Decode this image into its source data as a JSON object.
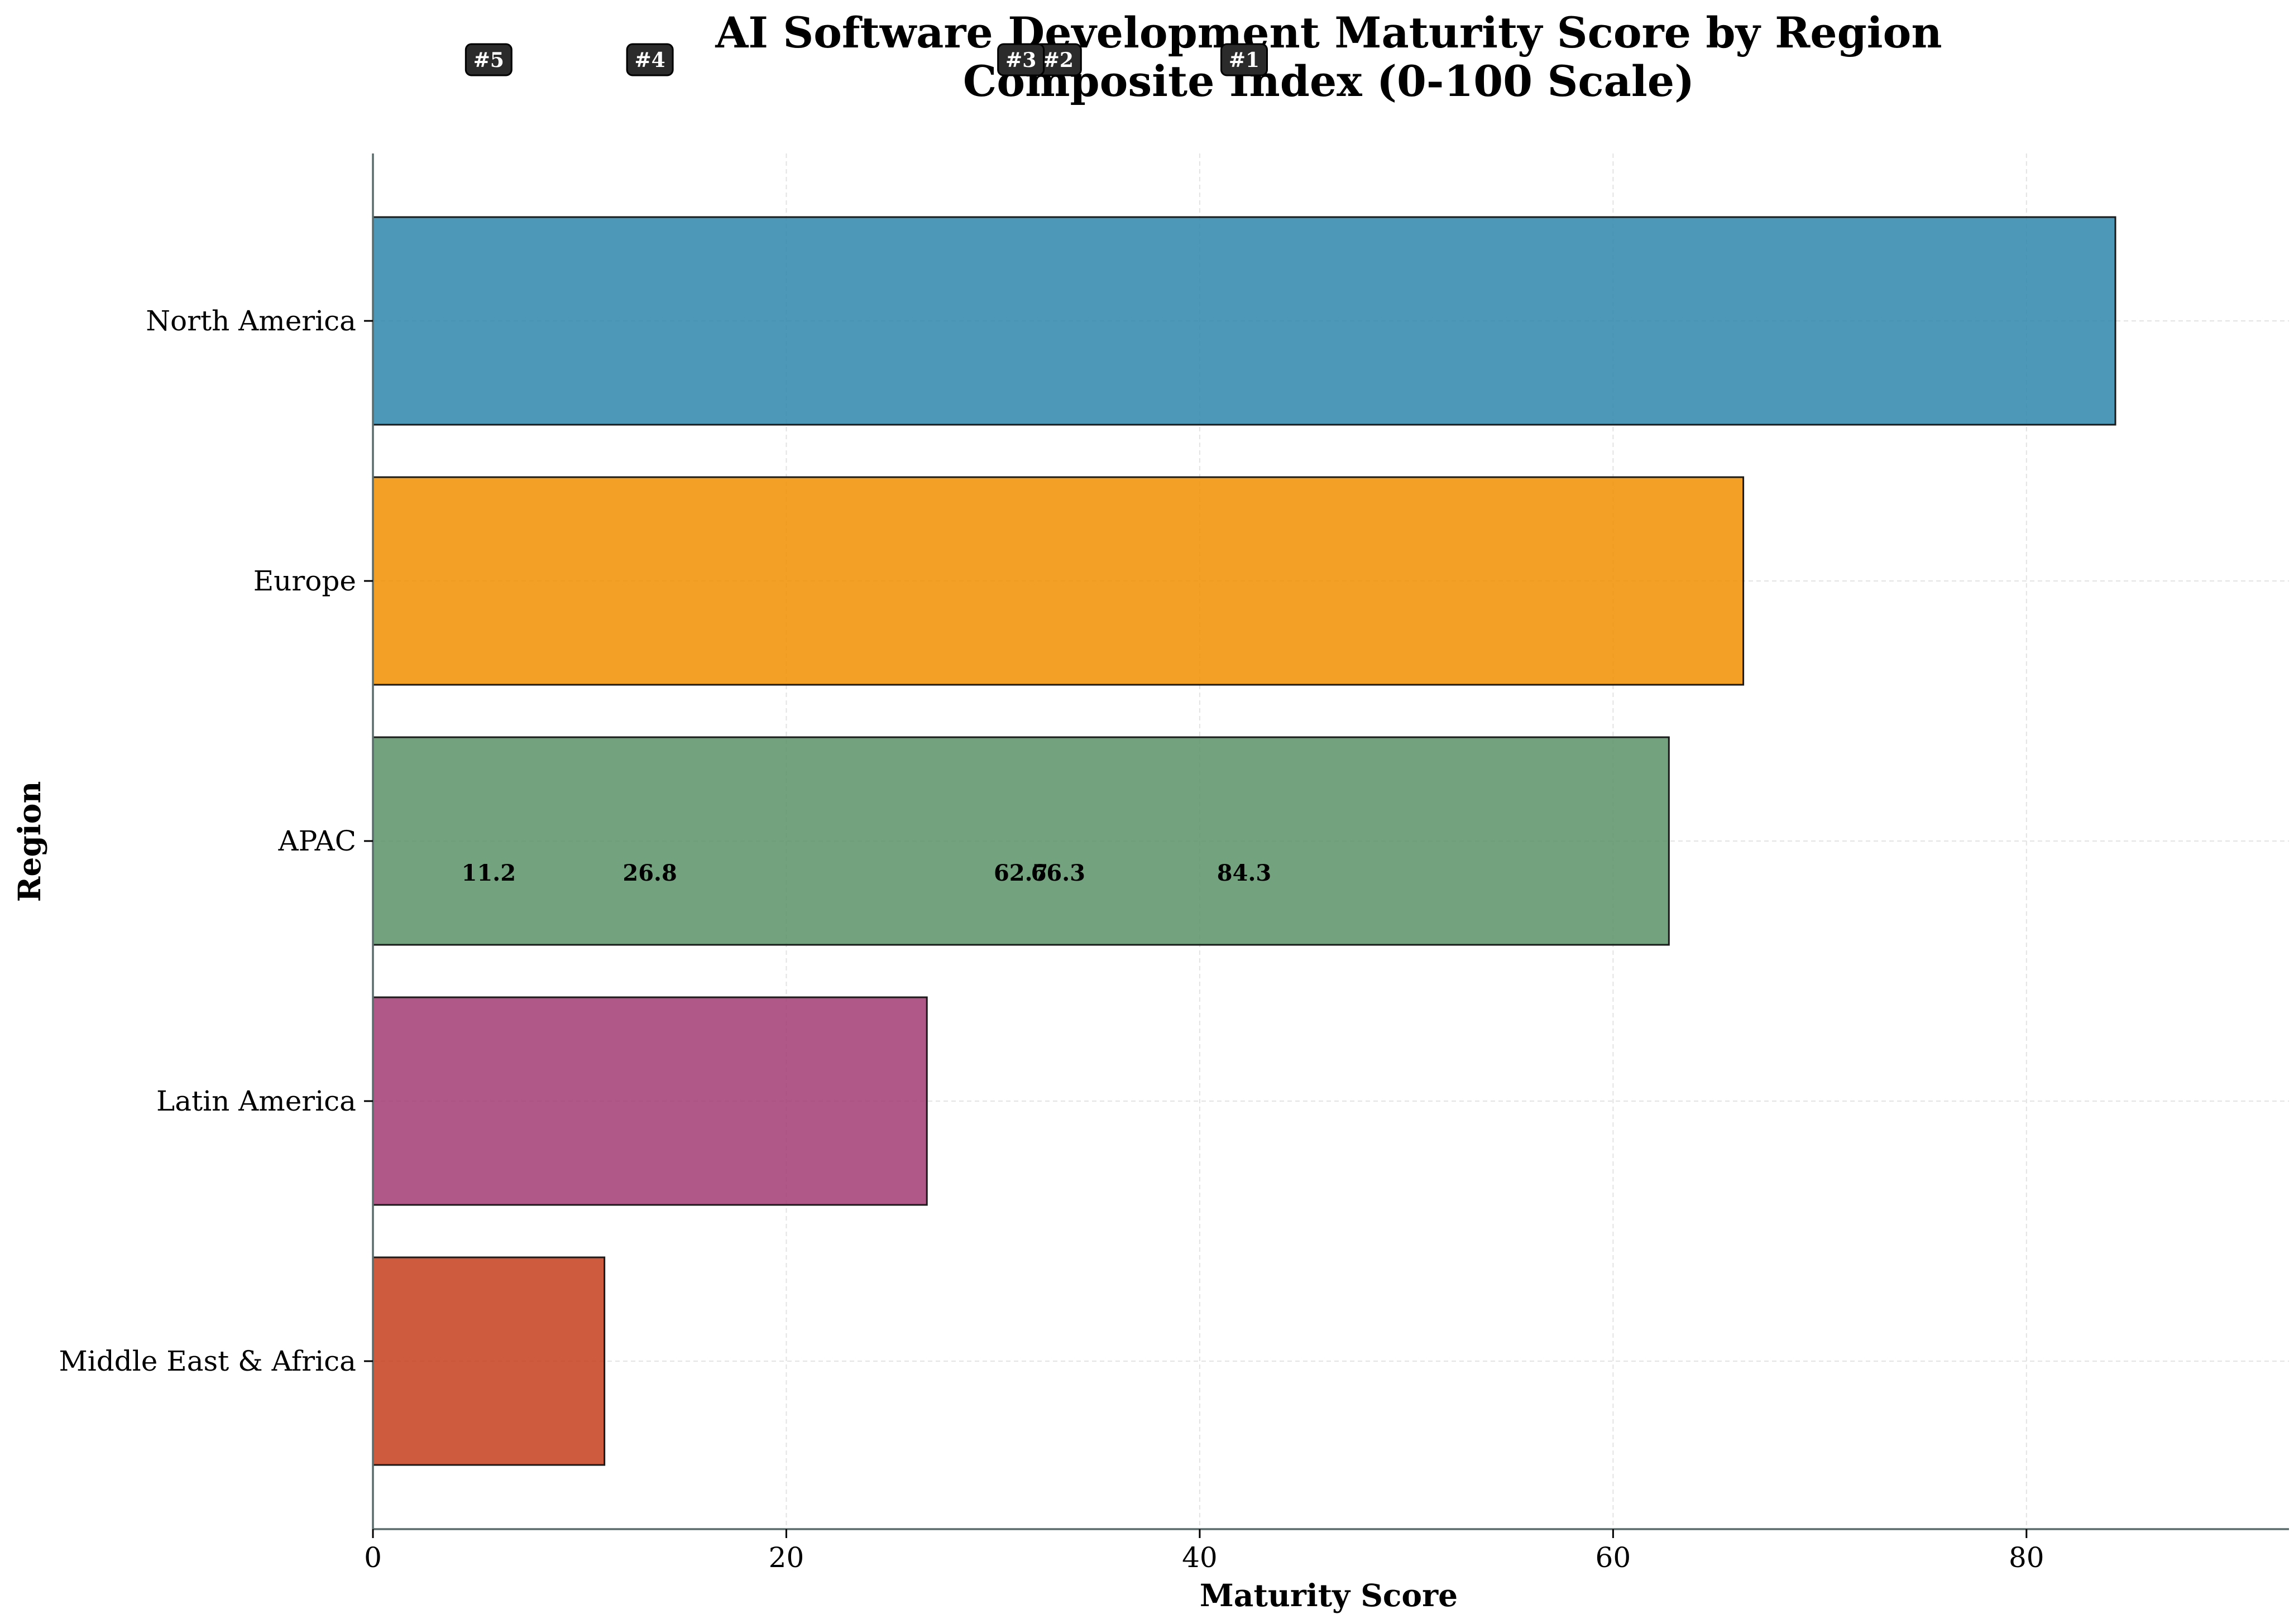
{
  "chart_data": {
    "type": "bar",
    "orientation": "horizontal",
    "title": "AI Software Development Maturity Score by Region",
    "subtitle": "Composite Index (0-100 Scale)",
    "xlabel": "Maturity Score",
    "ylabel": "Region",
    "xlim": [
      0,
      92.7
    ],
    "xticks": [
      "0",
      "20",
      "40",
      "60",
      "80"
    ],
    "grid": true,
    "categories": [
      "North America",
      "Europe",
      "APAC",
      "Latin America",
      "Middle East & Africa"
    ],
    "values": [
      84.3,
      66.3,
      62.7,
      26.8,
      11.2
    ],
    "value_labels": [
      "84.3",
      "66.3",
      "62.7",
      "26.8",
      "11.2"
    ],
    "ranks": [
      "#1",
      "#2",
      "#3",
      "#4",
      "#5"
    ],
    "colors": [
      "#2E86AB",
      "#F18F01",
      "#5A9367",
      "#A23B72",
      "#C73E1D"
    ]
  }
}
